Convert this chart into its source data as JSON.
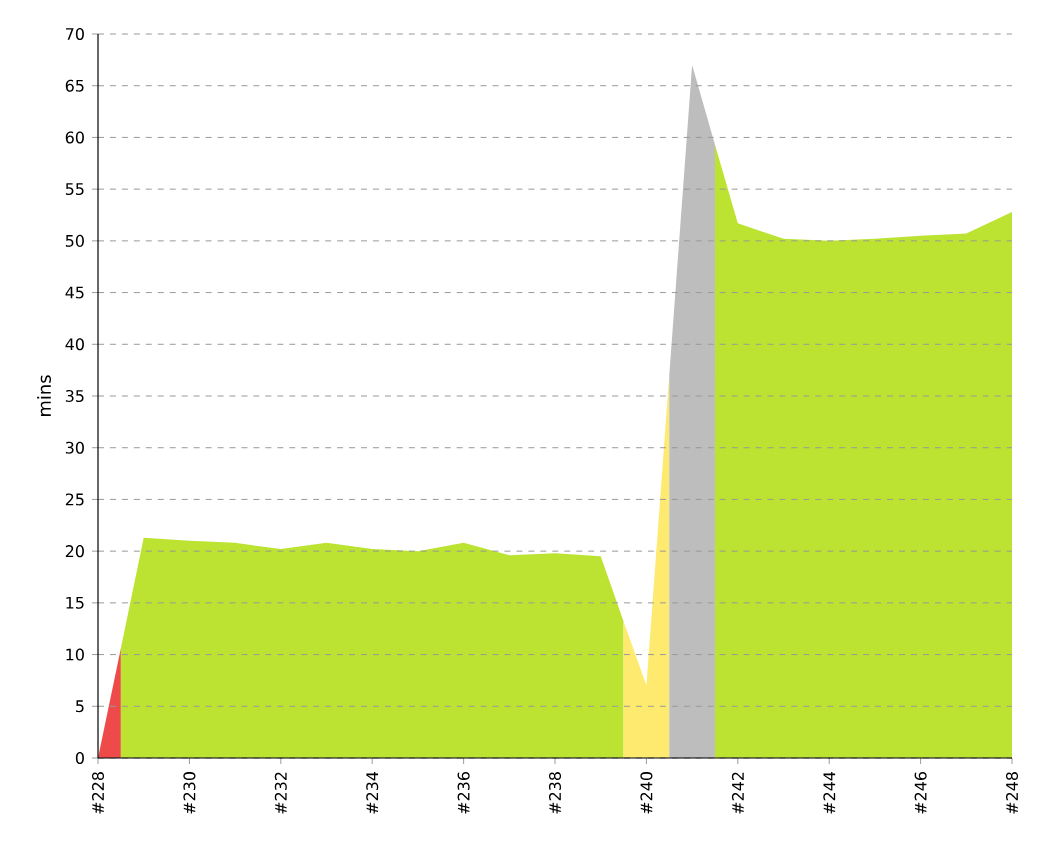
{
  "chart_data": {
    "type": "area",
    "ylabel": "mins",
    "xlim": [
      228,
      248
    ],
    "xticks": [
      {
        "value": 228,
        "label": "#228"
      },
      {
        "value": 230,
        "label": "#230"
      },
      {
        "value": 232,
        "label": "#232"
      },
      {
        "value": 234,
        "label": "#234"
      },
      {
        "value": 236,
        "label": "#236"
      },
      {
        "value": 238,
        "label": "#238"
      },
      {
        "value": 240,
        "label": "#240"
      },
      {
        "value": 242,
        "label": "#242"
      },
      {
        "value": 244,
        "label": "#244"
      },
      {
        "value": 246,
        "label": "#246"
      },
      {
        "value": 248,
        "label": "#248"
      }
    ],
    "series": [
      {
        "color": "#ef4a4a",
        "x": [
          228,
          228.5
        ],
        "values": [
          0,
          10.6
        ]
      },
      {
        "color": "#bce331",
        "x": [
          228.5,
          229,
          230,
          231,
          232,
          233,
          234,
          235,
          236,
          237,
          238,
          239,
          239.5
        ],
        "values": [
          10.6,
          21.3,
          21.0,
          20.8,
          20.2,
          20.8,
          20.2,
          20.0,
          20.8,
          19.6,
          19.8,
          19.5,
          13.2
        ]
      },
      {
        "color": "#fdea6f",
        "x": [
          239.5,
          240,
          240.5
        ],
        "values": [
          13.2,
          7,
          37
        ]
      },
      {
        "color": "#bdbdbd",
        "x": [
          240.5,
          241,
          241.5
        ],
        "values": [
          37,
          67,
          59.3
        ]
      },
      {
        "color": "#bce331",
        "x": [
          241.5,
          242,
          243,
          244,
          245,
          246,
          247,
          248
        ],
        "values": [
          59.3,
          51.7,
          50.2,
          50.0,
          50.2,
          50.5,
          50.7,
          52.8
        ]
      }
    ],
    "ylim": [
      0,
      70
    ],
    "yticks": [
      0,
      5,
      10,
      15,
      20,
      25,
      30,
      35,
      40,
      45,
      50,
      55,
      60,
      65,
      70
    ],
    "grid": "y"
  }
}
